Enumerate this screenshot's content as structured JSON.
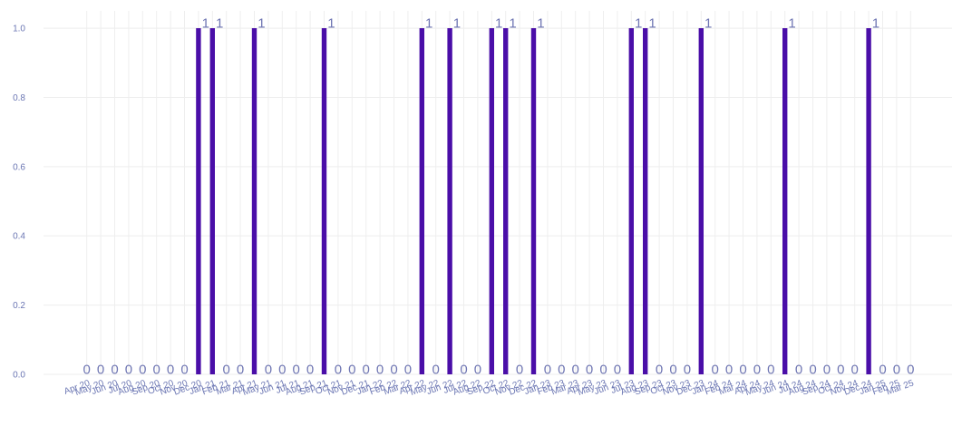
{
  "colors": {
    "bar": "#4a0ea8",
    "label": "#6f76b3",
    "tick": "#6b76b3",
    "grid": "#eeeeee"
  },
  "chart_data": {
    "type": "bar",
    "title": "",
    "xlabel": "",
    "ylabel": "",
    "ylim": [
      0,
      1.05
    ],
    "yticks": [
      "0.0",
      "0.2",
      "0.4",
      "0.6",
      "0.8",
      "1.0"
    ],
    "grid": true,
    "legend": "none",
    "categories": [
      "Apr 20",
      "May 20",
      "Jun 20",
      "Jul 20",
      "Aug 20",
      "Sep 20",
      "Oct 20",
      "Nov 20",
      "Dec 20",
      "Jan 21",
      "Feb 21",
      "Mar 21",
      "Apr 21",
      "May 21",
      "Jun 21",
      "Jul 21",
      "Aug 21",
      "Sep 21",
      "Oct 21",
      "Nov 21",
      "Dec 21",
      "Jan 22",
      "Feb 22",
      "Mar 22",
      "Apr 22",
      "May 22",
      "Jun 22",
      "Jul 22",
      "Aug 22",
      "Sep 22",
      "Oct 22",
      "Nov 22",
      "Dec 22",
      "Jan 23",
      "Feb 23",
      "Mar 23",
      "Apr 23",
      "May 23",
      "Jun 23",
      "Jul 23",
      "Aug 23",
      "Sep 23",
      "Oct 23",
      "Nov 23",
      "Dec 23",
      "Jan 24",
      "Feb 24",
      "Mar 24",
      "Apr 24",
      "May 24",
      "Jun 24",
      "Jul 24",
      "Aug 24",
      "Sep 24",
      "Oct 24",
      "Nov 24",
      "Dec 24",
      "Jan 25",
      "Feb 25",
      "Mar 25"
    ],
    "values": [
      0,
      0,
      0,
      0,
      0,
      0,
      0,
      0,
      1,
      1,
      0,
      0,
      1,
      0,
      0,
      0,
      0,
      1,
      0,
      0,
      0,
      0,
      0,
      0,
      1,
      0,
      1,
      0,
      0,
      1,
      1,
      0,
      1,
      0,
      0,
      0,
      0,
      0,
      0,
      1,
      1,
      0,
      0,
      0,
      1,
      0,
      0,
      0,
      0,
      0,
      1,
      0,
      0,
      0,
      0,
      0,
      1,
      0,
      0,
      0
    ]
  }
}
